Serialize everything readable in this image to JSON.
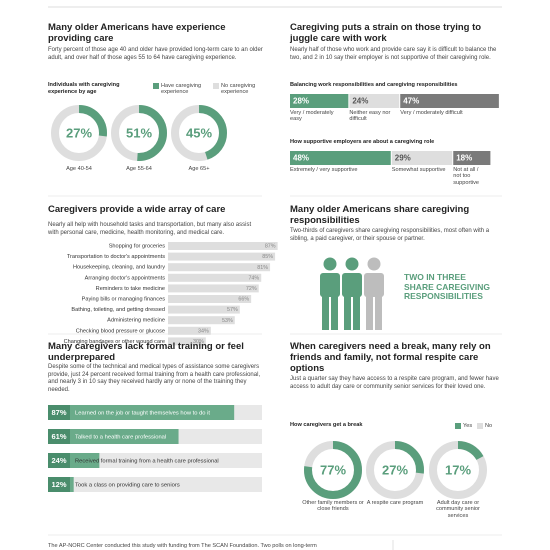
{
  "experience": {
    "title": "Many older Americans have experience providing care",
    "text": "Forty percent of those age 40 and older have provided long-term care to an older adult, and over half of those ages 55 to 64 have caregiving experience.",
    "chart_title": "Individuals with caregiving experience by age",
    "legend": [
      "Have caregiving experience",
      "No caregiving experience"
    ],
    "groups": [
      {
        "label": "Age 40-54",
        "value": 27,
        "value_label": "27%"
      },
      {
        "label": "Age 55-64",
        "value": 51,
        "value_label": "51%"
      },
      {
        "label": "Age 65+",
        "value": 45,
        "value_label": "45%"
      }
    ]
  },
  "work": {
    "title": "Caregiving puts a strain on those trying to juggle care with work",
    "text": "Nearly half of those who work and provide care say it is difficult to balance the two, and 2 in 10 say their employer is not supportive of their caregiving role.",
    "balance": {
      "title": "Balancing work responsibilities and caregiving responsibilities",
      "segments": [
        {
          "label": "Very / moderately easy",
          "value": 28,
          "value_label": "28%"
        },
        {
          "label": "Neither easy nor difficult",
          "value": 24,
          "value_label": "24%"
        },
        {
          "label": "Very / moderately difficult",
          "value": 47,
          "value_label": "47%"
        }
      ]
    },
    "support": {
      "title": "How supportive employers are about a caregiving role",
      "segments": [
        {
          "label": "Extremely / very supportive",
          "value": 48,
          "value_label": "48%"
        },
        {
          "label": "Somewhat supportive",
          "value": 29,
          "value_label": "29%"
        },
        {
          "label": "Not at all / not too supportive",
          "value": 18,
          "value_label": "18%"
        }
      ]
    }
  },
  "care": {
    "title": "Caregivers provide a wide array of care",
    "text": "Nearly all help with household tasks and transportation, but many also assist with personal care, medicine, health monitoring, and medical care.",
    "items": [
      {
        "label": "Shopping for groceries",
        "value": 87,
        "value_label": "87%"
      },
      {
        "label": "Transportation to doctor's appointments",
        "value": 85,
        "value_label": "85%"
      },
      {
        "label": "Housekeeping, cleaning, and laundry",
        "value": 81,
        "value_label": "81%"
      },
      {
        "label": "Arranging doctor's appointments",
        "value": 74,
        "value_label": "74%"
      },
      {
        "label": "Reminders to take medicine",
        "value": 72,
        "value_label": "72%"
      },
      {
        "label": "Paying bills or managing finances",
        "value": 66,
        "value_label": "66%"
      },
      {
        "label": "Bathing, toileting, and getting dressed",
        "value": 57,
        "value_label": "57%"
      },
      {
        "label": "Administering medicine",
        "value": 53,
        "value_label": "53%"
      },
      {
        "label": "Checking blood pressure or glucose",
        "value": 34,
        "value_label": "34%"
      },
      {
        "label": "Changing bandages or other wound care",
        "value": 30,
        "value_label": "30%"
      }
    ]
  },
  "share": {
    "title": "Many older Americans share caregiving responsibilities",
    "text": "Two-thirds of caregivers share caregiving responsibilities, most often with a sibling, a paid caregiver, or their spouse or partner.",
    "callout": "TWO IN THREE SHARE CAREGIVING RESPONSIBILITIES"
  },
  "training": {
    "title": "Many caregivers lack formal training or feel underprepared",
    "text": "Despite some of the technical and medical types of assistance some caregivers provide, just 24 percent received formal training from a health care professional, and nearly 3 in 10 say they received hardly any or none of the training they needed.",
    "items": [
      {
        "label": "Learned on the job or taught themselves how to do it",
        "value": 87,
        "value_label": "87%"
      },
      {
        "label": "Talked to a health care professional",
        "value": 61,
        "value_label": "61%"
      },
      {
        "label": "Received formal training from a health care professional",
        "value": 24,
        "value_label": "24%"
      },
      {
        "label": "Took a class on providing care to seniors",
        "value": 12,
        "value_label": "12%"
      }
    ]
  },
  "breaks": {
    "title": "When caregivers need a break, many rely on friends and family, not formal respite care options",
    "text": "Just a quarter say they have access to a respite care program, and fewer have access to adult day care or community senior services for their loved one.",
    "chart_title": "How caregivers get a break",
    "legend": [
      "Yes",
      "No"
    ],
    "groups": [
      {
        "label": "Other family members or close friends",
        "value": 77,
        "value_label": "77%"
      },
      {
        "label": "A respite care program",
        "value": 27,
        "value_label": "27%"
      },
      {
        "label": "Adult day care or community senior services",
        "value": 17,
        "value_label": "17%"
      }
    ]
  },
  "footer": "The AP-NORC Center conducted this study with funding from The SCAN Foundation. Two polls on long-term"
}
